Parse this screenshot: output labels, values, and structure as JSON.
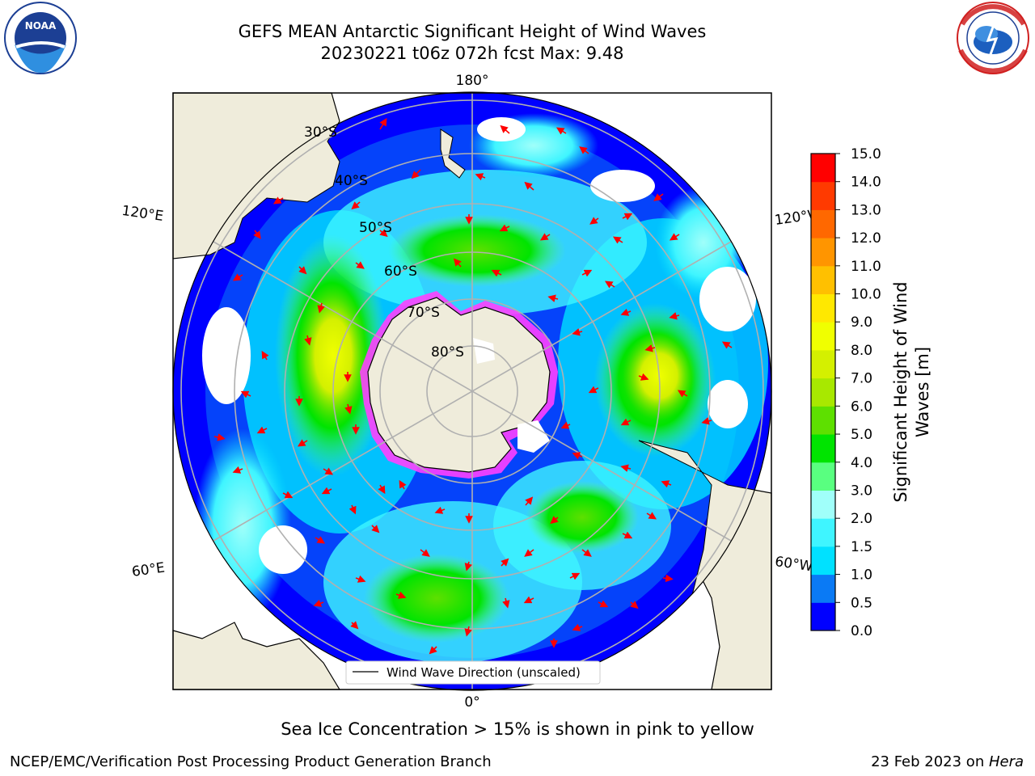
{
  "header": {
    "title_line1": "GEFS MEAN Antarctic Significant Height of Wind Waves",
    "title_line2": "20230221 t06z 072h fcst   Max: 9.48"
  },
  "logos": {
    "left": "NOAA",
    "right": "NATIONAL WEATHER SERVICE"
  },
  "map": {
    "projection": "south-polar-stereographic",
    "lon_labels": {
      "top": "180°",
      "bottom": "0°",
      "left_upper": "120°E",
      "left_lower": "60°E",
      "right_upper": "120°W",
      "right_lower": "60°W"
    },
    "lat_labels": [
      "30°S",
      "40°S",
      "50°S",
      "60°S",
      "70°S",
      "80°S"
    ],
    "legend_label": "Wind Wave Direction (unscaled)",
    "colors": {
      "ocean_land": "#efecdb",
      "arrow": "#ff0000",
      "ice_edge": "#ff40ff"
    }
  },
  "colorbar": {
    "label_line1": "Significant Height of Wind",
    "label_line2": "Waves [m]",
    "ticks": [
      "0.0",
      "0.5",
      "1.0",
      "1.5",
      "2.0",
      "3.0",
      "4.0",
      "5.0",
      "6.0",
      "7.0",
      "8.0",
      "9.0",
      "10.0",
      "11.0",
      "12.0",
      "13.0",
      "14.0",
      "15.0"
    ],
    "colors": [
      "#0000ff",
      "#0a7af5",
      "#00e1ff",
      "#3ff5ff",
      "#a0fffa",
      "#59ff80",
      "#00e400",
      "#5ee000",
      "#a8e800",
      "#d4f000",
      "#f0ff00",
      "#ffe800",
      "#ffc000",
      "#ff9500",
      "#ff6800",
      "#ff3a00",
      "#ff0000"
    ]
  },
  "footer": {
    "sea_ice_note": "Sea Ice Concentration > 15% is shown in pink to yellow",
    "credit_left": "NCEP/EMC/Verification Post Processing Product Generation Branch",
    "credit_right_prefix": "23 Feb 2023 on ",
    "credit_right_machine": "Hera"
  }
}
